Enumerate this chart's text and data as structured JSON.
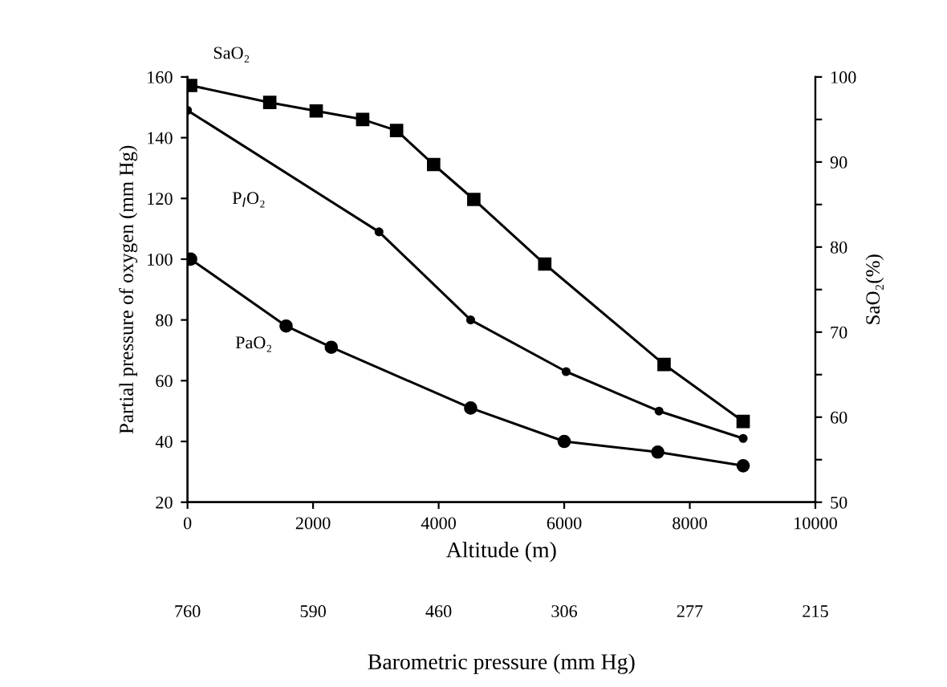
{
  "chart_data": {
    "type": "line",
    "xlabel": "Altitude (m)",
    "ylabel": "Partial pressure of oxygen (mm Hg)",
    "y2label": "SaO₂(%)",
    "xlim": [
      0,
      10000
    ],
    "xticks": [
      0,
      2000,
      4000,
      6000,
      8000,
      10000
    ],
    "ylim": [
      20,
      160
    ],
    "yticks": [
      20,
      40,
      60,
      80,
      100,
      120,
      140,
      160
    ],
    "y2lim": [
      50,
      100
    ],
    "y2ticks": [
      50,
      {
        "value": 55,
        "label": null
      },
      60,
      {
        "value": 65,
        "label": null
      },
      70,
      {
        "value": 75,
        "label": null
      },
      80,
      {
        "value": 85,
        "label": null
      },
      90,
      {
        "value": 95,
        "label": null
      },
      100
    ],
    "x2label": "Barometric pressure (mm Hg)",
    "annotations": [
      "760",
      "590",
      "460",
      "306",
      "277",
      "215"
    ],
    "grid": false,
    "legend": false,
    "series": [
      {
        "name": "SaO₂",
        "color": "#000000",
        "axis": "y2",
        "marker": "square",
        "x": [
          50,
          1310,
          2050,
          2790,
          3330,
          3920,
          4560,
          5690,
          7590,
          8850
        ],
        "values": [
          99,
          97,
          96,
          95,
          93.7,
          89.7,
          85.6,
          78,
          66.2,
          59.5
        ]
      },
      {
        "name": "P$_{I}$O₂",
        "color": "#000000",
        "marker": "circle",
        "x": [
          0,
          3050,
          4510,
          6030,
          7510,
          8850
        ],
        "values": [
          149,
          109,
          80,
          63,
          50,
          41
        ]
      },
      {
        "name": "PaO₂",
        "color": "#000000",
        "marker": "circle",
        "x": [
          50,
          1570,
          2290,
          4510,
          6000,
          7490,
          8850
        ],
        "values": [
          100,
          78,
          71,
          51,
          40,
          36.5,
          32
        ]
      }
    ]
  }
}
